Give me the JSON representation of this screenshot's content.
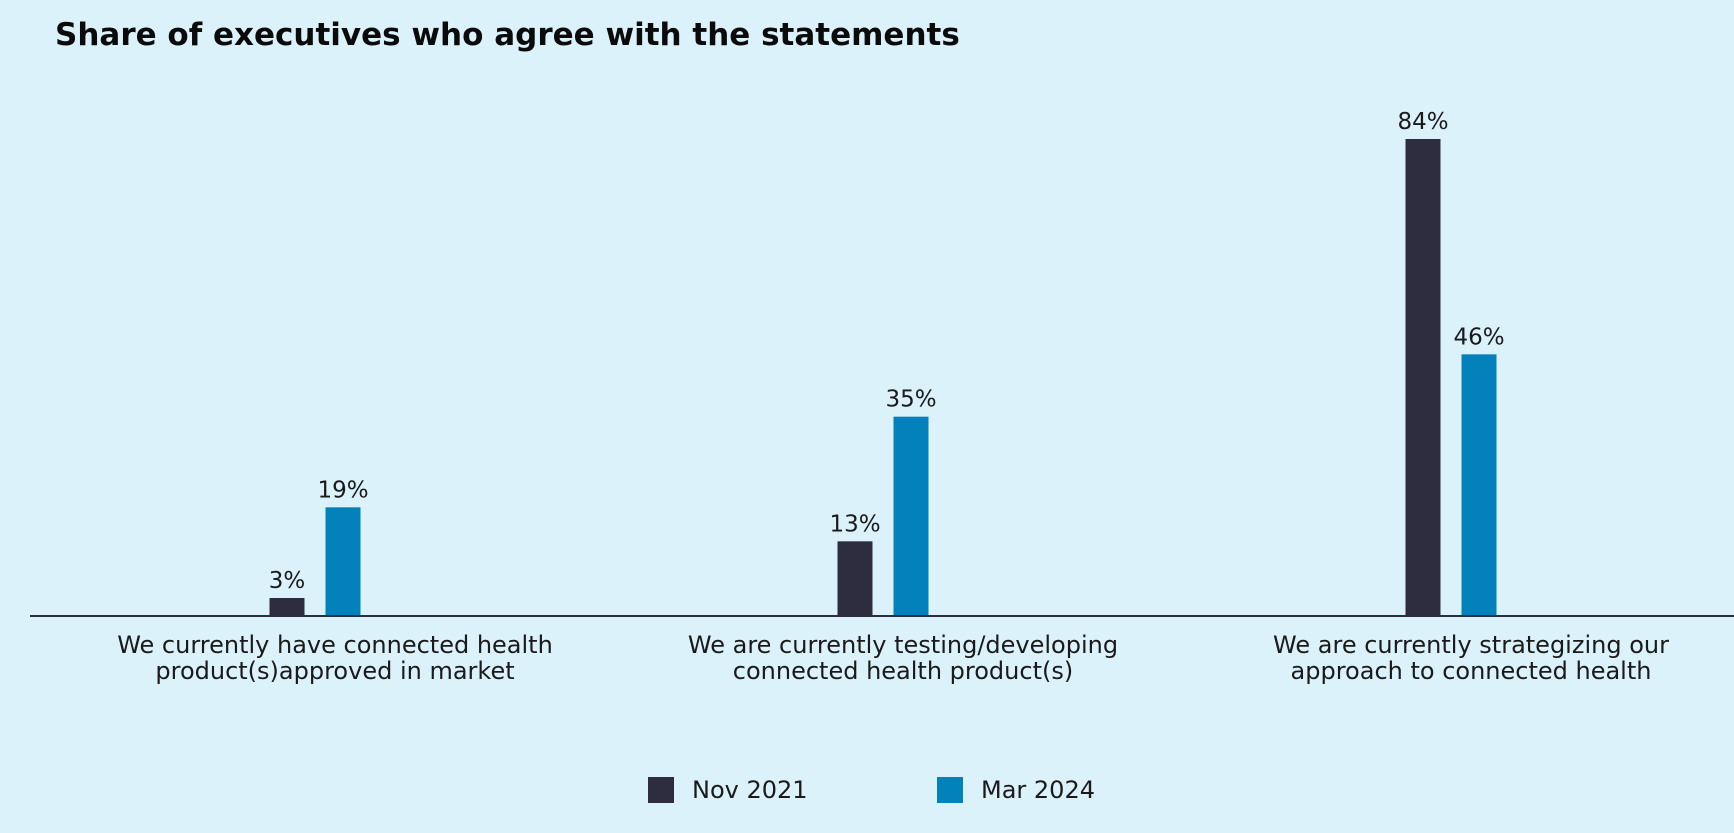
{
  "chart_data": {
    "type": "bar",
    "title": "Share of executives who agree with the statements",
    "xlabel": "",
    "ylabel": "",
    "ylim": [
      0,
      100
    ],
    "grid": false,
    "legend_position": "bottom-center",
    "categories": [
      [
        "We currently have connected health",
        "product(s)approved in market"
      ],
      [
        "We are currently testing/developing",
        "connected health product(s)"
      ],
      [
        "We are currently strategizing our",
        "approach to connected health"
      ]
    ],
    "series": [
      {
        "name": "Nov 2021",
        "color": "#2d2d3f",
        "values": [
          3,
          13,
          84
        ],
        "labels": [
          "3%",
          "13%",
          "84%"
        ]
      },
      {
        "name": "Mar 2024",
        "color": "#0281bb",
        "values": [
          19,
          35,
          46
        ],
        "labels": [
          "19%",
          "35%",
          "46%"
        ]
      }
    ]
  }
}
